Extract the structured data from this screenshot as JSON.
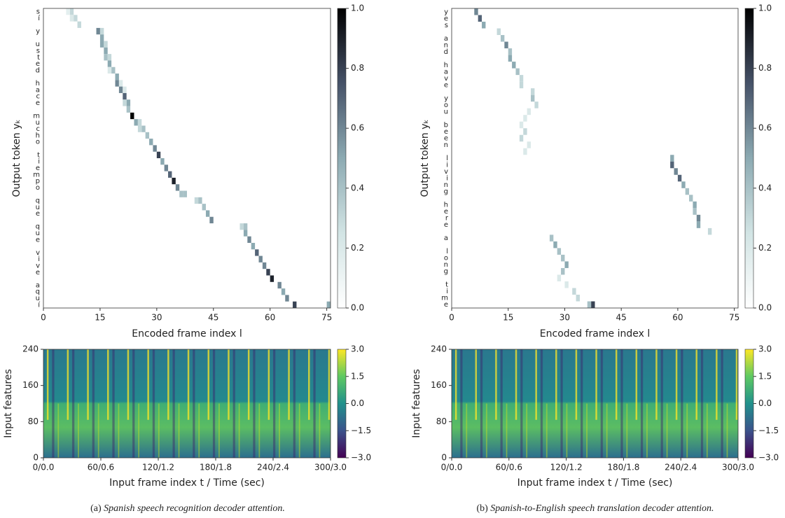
{
  "chart_data": [
    {
      "type": "heatmap",
      "xlabel": "Encoded frame index l",
      "ylabel": "Output token yₖ",
      "categories": [
        "s",
        "í",
        null,
        "y",
        null,
        "u",
        "s",
        "t",
        "e",
        "d",
        null,
        "h",
        "a",
        "c",
        "e",
        null,
        "m",
        "u",
        "c",
        "h",
        "o",
        null,
        "t",
        "i",
        "e",
        "m",
        "p",
        "o",
        null,
        "q",
        "u",
        "e",
        null,
        "q",
        "u",
        "e",
        null,
        "v",
        "i",
        "v",
        "e",
        null,
        "a",
        "q",
        "u",
        "í"
      ],
      "xlim": [
        0,
        76
      ],
      "xticks": [
        0,
        15,
        30,
        45,
        60,
        75
      ],
      "cells": [
        [
          0,
          7,
          0.3
        ],
        [
          0,
          6,
          0.15
        ],
        [
          1,
          8,
          0.3
        ],
        [
          1,
          7,
          0.2
        ],
        [
          2,
          9,
          0.3
        ],
        [
          3,
          14,
          0.6
        ],
        [
          3,
          15,
          0.3
        ],
        [
          4,
          15,
          0.5
        ],
        [
          5,
          15,
          0.5
        ],
        [
          5,
          16,
          0.3
        ],
        [
          6,
          16,
          0.5
        ],
        [
          7,
          16,
          0.4
        ],
        [
          7,
          17,
          0.3
        ],
        [
          8,
          17,
          0.5
        ],
        [
          9,
          18,
          0.4
        ],
        [
          9,
          17,
          0.2
        ],
        [
          10,
          19,
          0.5
        ],
        [
          11,
          19,
          0.6
        ],
        [
          11,
          20,
          0.2
        ],
        [
          12,
          20,
          0.6
        ],
        [
          12,
          21,
          0.2
        ],
        [
          13,
          21,
          0.7
        ],
        [
          14,
          22,
          0.5
        ],
        [
          14,
          21,
          0.3
        ],
        [
          15,
          22,
          0.4
        ],
        [
          16,
          23,
          1.0
        ],
        [
          17,
          24,
          0.5
        ],
        [
          17,
          25,
          0.3
        ],
        [
          18,
          26,
          0.4
        ],
        [
          18,
          25,
          0.3
        ],
        [
          19,
          27,
          0.4
        ],
        [
          20,
          28,
          0.5
        ],
        [
          21,
          29,
          0.6
        ],
        [
          22,
          30,
          0.8
        ],
        [
          23,
          31,
          0.5
        ],
        [
          24,
          32,
          0.6
        ],
        [
          25,
          33,
          0.7
        ],
        [
          26,
          34,
          0.9
        ],
        [
          27,
          35,
          0.6
        ],
        [
          28,
          36,
          0.4
        ],
        [
          28,
          37,
          0.4
        ],
        [
          29,
          40,
          0.3
        ],
        [
          29,
          41,
          0.4
        ],
        [
          30,
          42,
          0.4
        ],
        [
          31,
          43,
          0.5
        ],
        [
          32,
          44,
          0.6
        ],
        [
          33,
          52,
          0.3
        ],
        [
          33,
          53,
          0.4
        ],
        [
          34,
          53,
          0.5
        ],
        [
          35,
          54,
          0.6
        ],
        [
          36,
          55,
          0.5
        ],
        [
          37,
          56,
          0.7
        ],
        [
          38,
          57,
          0.6
        ],
        [
          39,
          58,
          0.6
        ],
        [
          40,
          59,
          0.8
        ],
        [
          41,
          60,
          0.9
        ],
        [
          42,
          62,
          0.6
        ],
        [
          43,
          63,
          0.5
        ],
        [
          44,
          64,
          0.6
        ],
        [
          45,
          66,
          0.8
        ],
        [
          45,
          75,
          0.5
        ]
      ],
      "clim": [
        0,
        1
      ],
      "cticks": [
        {
          "value": 0,
          "label": "0.0"
        },
        {
          "value": 0.2,
          "label": "0.2"
        },
        {
          "value": 0.4,
          "label": "0.4"
        },
        {
          "value": 0.6,
          "label": "0.6"
        },
        {
          "value": 0.8,
          "label": "0.8"
        },
        {
          "value": 1,
          "label": "1.0"
        }
      ]
    },
    {
      "type": "heatmap",
      "xlabel": "Encoded frame index l",
      "ylabel": "Output token yₖ",
      "categories": [
        "y",
        "e",
        "s",
        null,
        "a",
        "n",
        "d",
        null,
        "h",
        "a",
        "v",
        "e",
        null,
        "y",
        "o",
        "u",
        null,
        "b",
        "e",
        "e",
        "n",
        null,
        "l",
        "i",
        "v",
        "i",
        "n",
        "g",
        null,
        "h",
        "e",
        "r",
        "e",
        null,
        "a",
        null,
        "l",
        "o",
        "n",
        "g",
        null,
        "t",
        "i",
        "m",
        "e"
      ],
      "xlim": [
        0,
        76
      ],
      "xticks": [
        0,
        15,
        30,
        45,
        60,
        75
      ],
      "cells": [
        [
          0,
          6,
          0.6
        ],
        [
          1,
          7,
          0.7
        ],
        [
          2,
          8,
          0.5
        ],
        [
          3,
          12,
          0.3
        ],
        [
          4,
          13,
          0.4
        ],
        [
          5,
          14,
          0.6
        ],
        [
          6,
          15,
          0.4
        ],
        [
          7,
          15,
          0.5
        ],
        [
          8,
          16,
          0.5
        ],
        [
          9,
          17,
          0.4
        ],
        [
          10,
          18,
          0.3
        ],
        [
          11,
          18,
          0.3
        ],
        [
          12,
          21,
          0.3
        ],
        [
          13,
          21,
          0.4
        ],
        [
          14,
          22,
          0.3
        ],
        [
          15,
          20,
          0.2
        ],
        [
          16,
          19,
          0.2
        ],
        [
          17,
          18,
          0.2
        ],
        [
          18,
          19,
          0.3
        ],
        [
          19,
          18,
          0.3
        ],
        [
          20,
          20,
          0.2
        ],
        [
          21,
          19,
          0.2
        ],
        [
          22,
          58,
          0.5
        ],
        [
          23,
          58,
          0.7
        ],
        [
          24,
          59,
          0.6
        ],
        [
          25,
          60,
          0.7
        ],
        [
          26,
          61,
          0.5
        ],
        [
          27,
          62,
          0.4
        ],
        [
          28,
          63,
          0.4
        ],
        [
          29,
          64,
          0.5
        ],
        [
          30,
          64,
          0.4
        ],
        [
          31,
          65,
          0.6
        ],
        [
          32,
          65,
          0.5
        ],
        [
          33,
          68,
          0.3
        ],
        [
          34,
          26,
          0.4
        ],
        [
          35,
          27,
          0.5
        ],
        [
          36,
          28,
          0.4
        ],
        [
          37,
          29,
          0.4
        ],
        [
          38,
          30,
          0.5
        ],
        [
          39,
          29,
          0.4
        ],
        [
          40,
          28,
          0.2
        ],
        [
          41,
          30,
          0.2
        ],
        [
          42,
          32,
          0.3
        ],
        [
          43,
          33,
          0.3
        ],
        [
          44,
          37,
          0.8
        ],
        [
          44,
          36,
          0.4
        ]
      ],
      "clim": [
        0,
        1
      ],
      "cticks": [
        {
          "value": 0,
          "label": "0.0"
        },
        {
          "value": 0.2,
          "label": "0.2"
        },
        {
          "value": 0.4,
          "label": "0.4"
        },
        {
          "value": 0.6,
          "label": "0.6"
        },
        {
          "value": 0.8,
          "label": "0.8"
        },
        {
          "value": 1,
          "label": "1.0"
        }
      ]
    },
    {
      "type": "spectrogram",
      "xlabel": "Input frame index t / Time (sec)",
      "ylabel": "Input features",
      "xlim": [
        0,
        300
      ],
      "xticks": [
        {
          "value": 0,
          "label": "0/0.0"
        },
        {
          "value": 60,
          "label": "60/0.6"
        },
        {
          "value": 120,
          "label": "120/1.2"
        },
        {
          "value": 180,
          "label": "180/1.8"
        },
        {
          "value": 240,
          "label": "240/2.4"
        },
        {
          "value": 300,
          "label": "300/3.0"
        }
      ],
      "ylim": [
        0,
        240
      ],
      "yticks": [
        0,
        80,
        160,
        240
      ],
      "clim": [
        -3,
        3
      ],
      "cticks": [
        {
          "value": 3,
          "label": "3.0"
        },
        {
          "value": 1.5,
          "label": "1.5"
        },
        {
          "value": 0,
          "label": "0.0"
        },
        {
          "value": -1.5,
          "label": "−1.5"
        },
        {
          "value": -3,
          "label": "−3.0"
        }
      ]
    },
    {
      "type": "spectrogram",
      "xlabel": "Input frame index t / Time (sec)",
      "ylabel": "Input features",
      "xlim": [
        0,
        300
      ],
      "xticks": [
        {
          "value": 0,
          "label": "0/0.0"
        },
        {
          "value": 60,
          "label": "60/0.6"
        },
        {
          "value": 120,
          "label": "120/1.2"
        },
        {
          "value": 180,
          "label": "180/1.8"
        },
        {
          "value": 240,
          "label": "240/2.4"
        },
        {
          "value": 300,
          "label": "300/3.0"
        }
      ],
      "ylim": [
        0,
        240
      ],
      "yticks": [
        0,
        80,
        160,
        240
      ],
      "clim": [
        -3,
        3
      ],
      "cticks": [
        {
          "value": 3,
          "label": "3.0"
        },
        {
          "value": 1.5,
          "label": "1.5"
        },
        {
          "value": 0,
          "label": "0.0"
        },
        {
          "value": -1.5,
          "label": "−1.5"
        },
        {
          "value": -3,
          "label": "−3.0"
        }
      ]
    }
  ],
  "captions": [
    {
      "label": "(a)",
      "text": "Spanish speech recognition decoder attention."
    },
    {
      "label": "(b)",
      "text": "Spanish-to-English speech translation decoder attention."
    }
  ]
}
